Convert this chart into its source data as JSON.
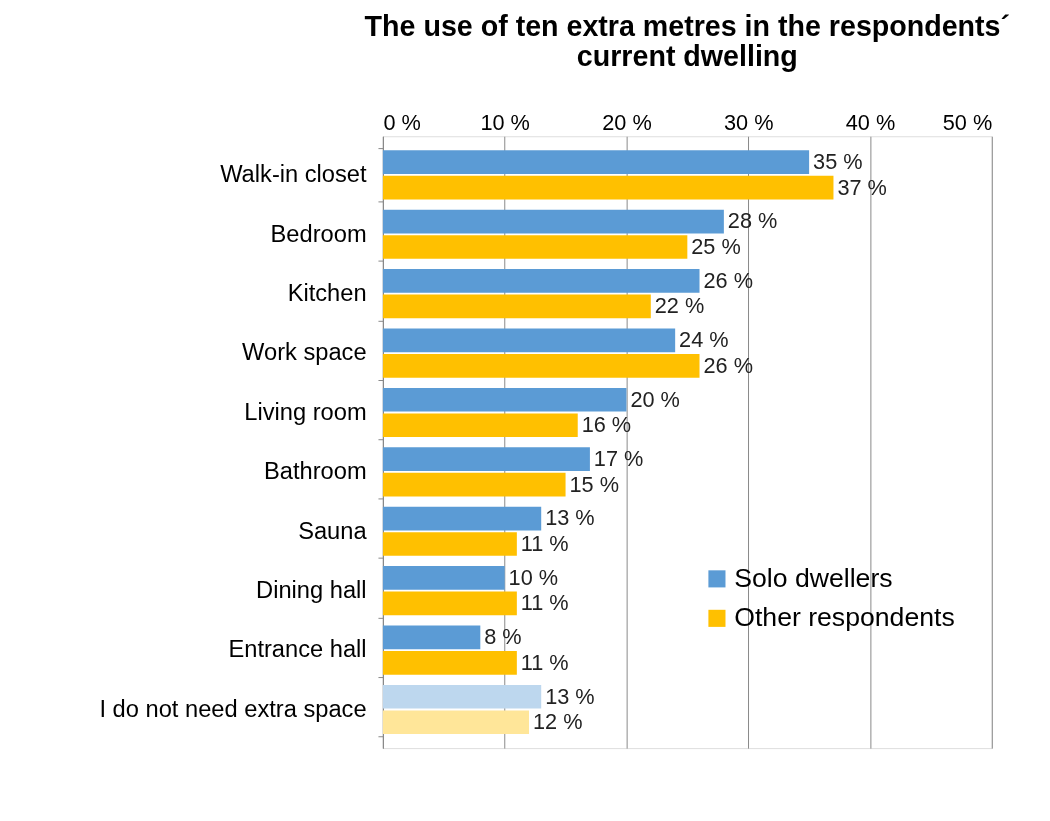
{
  "chart_data": {
    "type": "bar",
    "orientation": "horizontal",
    "title": "The use of ten extra metres in the respondents´ current dwelling",
    "categories": [
      "Walk-in closet",
      "Bedroom",
      "Kitchen",
      "Work space",
      "Living room",
      "Bathroom",
      "Sauna",
      "Dining hall",
      "Entrance hall",
      "I do not need extra space"
    ],
    "series": [
      {
        "name": "Solo dwellers",
        "color": "#5b9bd5",
        "colors": [
          "#5b9bd5",
          "#5b9bd5",
          "#5b9bd5",
          "#5b9bd5",
          "#5b9bd5",
          "#5b9bd5",
          "#5b9bd5",
          "#5b9bd5",
          "#5b9bd5",
          "#bdd7ee"
        ],
        "values": [
          35,
          28,
          26,
          24,
          20,
          17,
          13,
          10,
          8,
          13
        ],
        "value_labels": [
          "35 %",
          "28 %",
          "26 %",
          "24 %",
          "20 %",
          "17 %",
          "13 %",
          "10 %",
          "8 %",
          "13 %"
        ]
      },
      {
        "name": "Other respondents",
        "color": "#ffc000",
        "colors": [
          "#ffc000",
          "#ffc000",
          "#ffc000",
          "#ffc000",
          "#ffc000",
          "#ffc000",
          "#ffc000",
          "#ffc000",
          "#ffc000",
          "#ffe699"
        ],
        "values": [
          37,
          25,
          22,
          26,
          16,
          15,
          11,
          11,
          11,
          12
        ],
        "value_labels": [
          "37 %",
          "25 %",
          "22 %",
          "26 %",
          "16 %",
          "15 %",
          "11 %",
          "11 %",
          "11 %",
          "12 %"
        ]
      }
    ],
    "xlim": [
      0,
      50
    ],
    "xticks": [
      {
        "value": 0,
        "label": "0 %"
      },
      {
        "value": 10,
        "label": "10 %"
      },
      {
        "value": 20,
        "label": "20 %"
      },
      {
        "value": 30,
        "label": "30 %"
      },
      {
        "value": 40,
        "label": "40 %"
      },
      {
        "value": 50,
        "label": "50 %"
      }
    ],
    "grid": "x",
    "legend": "bottom right"
  }
}
